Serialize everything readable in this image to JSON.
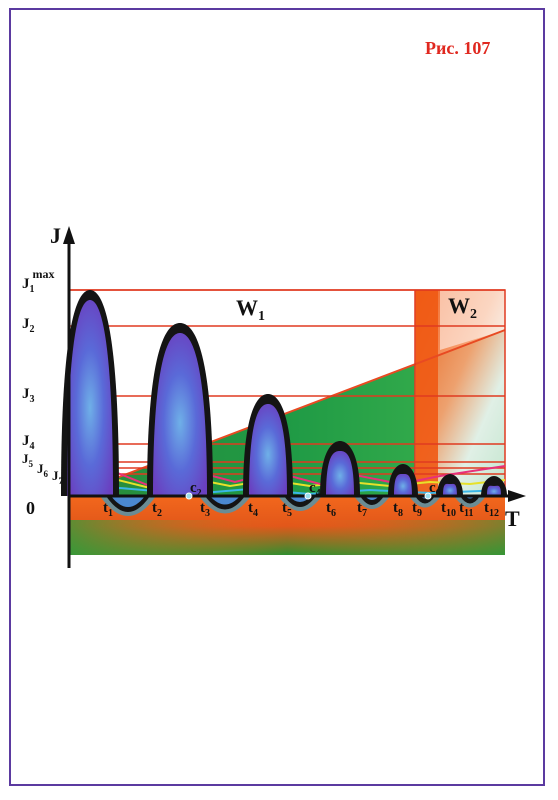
{
  "figure_label": "Рис. 107",
  "axis": {
    "y_label": "J",
    "x_label": "T",
    "origin_label": "0"
  },
  "regions": {
    "w1": "W",
    "w1_sub": "1",
    "w2": "W",
    "w2_sub": "2"
  },
  "y_levels": [
    {
      "base": "J",
      "sub": "1",
      "sup": "max"
    },
    {
      "base": "J",
      "sub": "2",
      "sup": ""
    },
    {
      "base": "J",
      "sub": "3",
      "sup": ""
    },
    {
      "base": "J",
      "sub": "4",
      "sup": ""
    },
    {
      "base": "J",
      "sub": "5",
      "sup": ""
    },
    {
      "base": "J",
      "sub": "6",
      "sup": ""
    },
    {
      "base": "J",
      "sub": "7",
      "sup": ""
    }
  ],
  "t_labels": [
    {
      "base": "t",
      "sub": "1"
    },
    {
      "base": "t",
      "sub": "2"
    },
    {
      "base": "t",
      "sub": "3"
    },
    {
      "base": "t",
      "sub": "4"
    },
    {
      "base": "t",
      "sub": "5"
    },
    {
      "base": "t",
      "sub": "6"
    },
    {
      "base": "t",
      "sub": "7"
    },
    {
      "base": "t",
      "sub": "8"
    },
    {
      "base": "t",
      "sub": "9"
    },
    {
      "base": "t",
      "sub": "10"
    },
    {
      "base": "t",
      "sub": "11"
    },
    {
      "base": "t",
      "sub": "12"
    }
  ],
  "c_labels": [
    {
      "base": "c",
      "sub": "2"
    },
    {
      "base": "c",
      "sub": "4"
    },
    {
      "base": "c",
      "sub": "6"
    }
  ],
  "colors": {
    "frame": "#5b3aa0",
    "label_red": "#e0281f",
    "level_line": "#e03a20",
    "lobe_fill": "#6a4fc8",
    "lobe_edge": "#141414",
    "green": "#1a9a3a",
    "orange": "#f26a1e"
  }
}
